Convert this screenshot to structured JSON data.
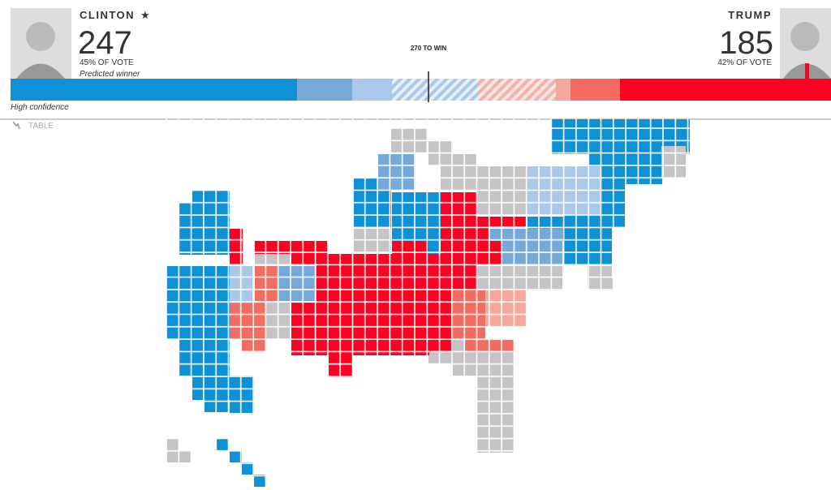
{
  "header": {
    "left": {
      "name": "CLINTON",
      "electoral_votes": "247",
      "vote_share": "45% OF VOTE",
      "status": "Predicted winner"
    },
    "right": {
      "name": "TRUMP",
      "electoral_votes": "185",
      "vote_share": "42% OF VOTE"
    },
    "threshold": "270 TO WIN",
    "bar_note": "High confidence"
  },
  "toolbar": {
    "table_button": "TABLE"
  }
}
